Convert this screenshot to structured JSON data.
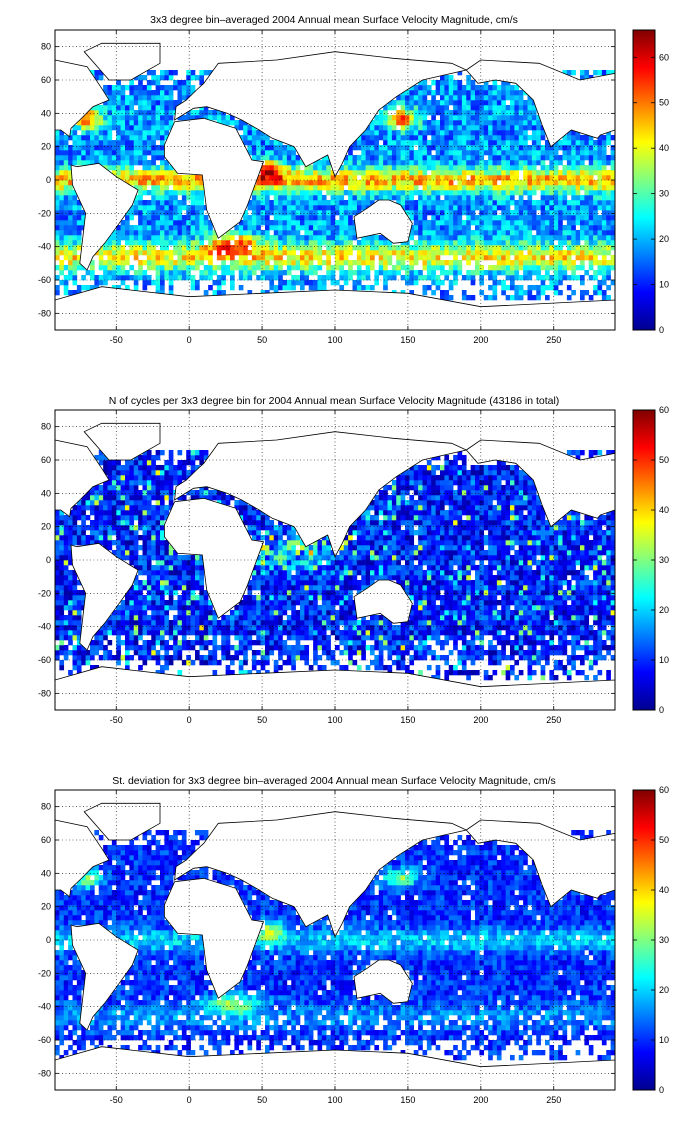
{
  "chart_data": [
    {
      "type": "heatmap",
      "title": "3x3 degree bin–averaged 2004 Annual mean Surface Velocity Magnitude, cm/s",
      "xlim": [
        -92,
        292
      ],
      "ylim": [
        -90,
        90
      ],
      "xticks": [
        -50,
        0,
        50,
        100,
        150,
        200,
        250
      ],
      "yticks": [
        -80,
        -60,
        -40,
        -20,
        0,
        20,
        40,
        60,
        80
      ],
      "colorbar": {
        "min": 0,
        "max": 66,
        "ticks": [
          0,
          10,
          20,
          30,
          40,
          50,
          60
        ]
      },
      "grid": true,
      "bin_size_deg": 3,
      "field": "velocity",
      "seed": 11
    },
    {
      "type": "heatmap",
      "title": "N of cycles per 3x3 degree bin for 2004 Annual mean Surface Velocity Magnitude (43186 in total)",
      "xlim": [
        -92,
        292
      ],
      "ylim": [
        -90,
        90
      ],
      "xticks": [
        -50,
        0,
        50,
        100,
        150,
        200,
        250
      ],
      "yticks": [
        -80,
        -60,
        -40,
        -20,
        0,
        20,
        40,
        60,
        80
      ],
      "colorbar": {
        "min": 0,
        "max": 60,
        "ticks": [
          0,
          10,
          20,
          30,
          40,
          50,
          60
        ]
      },
      "grid": true,
      "bin_size_deg": 3,
      "field": "count",
      "seed": 23
    },
    {
      "type": "heatmap",
      "title": "St. deviation for 3x3 degree bin–averaged 2004 Annual mean Surface Velocity Magnitude, cm/s",
      "xlim": [
        -92,
        292
      ],
      "ylim": [
        -90,
        90
      ],
      "xticks": [
        -50,
        0,
        50,
        100,
        150,
        200,
        250
      ],
      "yticks": [
        -80,
        -60,
        -40,
        -20,
        0,
        20,
        40,
        60,
        80
      ],
      "colorbar": {
        "min": 0,
        "max": 60,
        "ticks": [
          0,
          10,
          20,
          30,
          40,
          50,
          60
        ]
      },
      "grid": true,
      "bin_size_deg": 3,
      "field": "stdev",
      "seed": 37
    }
  ]
}
